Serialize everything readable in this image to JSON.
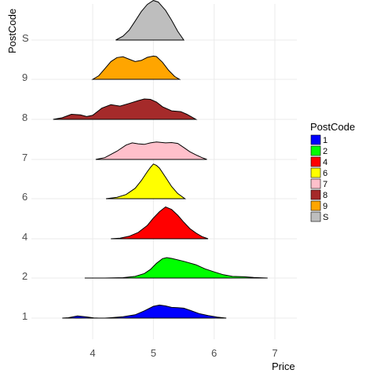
{
  "chart_data": {
    "type": "area",
    "subtype": "ridgeline-density",
    "title": "",
    "xlabel": "Price",
    "ylabel": "PostCode",
    "xlim": [
      3.0,
      7.35
    ],
    "x_ticks": [
      4,
      5,
      6,
      7
    ],
    "grid": true,
    "legend": {
      "title": "PostCode",
      "position": "right"
    },
    "categories": [
      "1",
      "2",
      "4",
      "6",
      "7",
      "8",
      "9",
      "S"
    ],
    "series": [
      {
        "name": "1",
        "color": "#0000ff",
        "scale": 0.32,
        "points": [
          [
            3.5,
            0
          ],
          [
            3.6,
            0.03
          ],
          [
            3.75,
            0.16
          ],
          [
            3.9,
            0.09
          ],
          [
            4.02,
            0.01
          ],
          [
            4.1,
            0
          ],
          [
            4.2,
            0
          ],
          [
            4.3,
            0.03
          ],
          [
            4.5,
            0.1
          ],
          [
            4.7,
            0.25
          ],
          [
            4.85,
            0.55
          ],
          [
            5.0,
            0.9
          ],
          [
            5.1,
            1.0
          ],
          [
            5.2,
            0.93
          ],
          [
            5.3,
            0.82
          ],
          [
            5.4,
            0.8
          ],
          [
            5.5,
            0.76
          ],
          [
            5.6,
            0.6
          ],
          [
            5.75,
            0.35
          ],
          [
            5.9,
            0.2
          ],
          [
            6.05,
            0.08
          ],
          [
            6.2,
            0
          ]
        ]
      },
      {
        "name": "2",
        "color": "#00ff00",
        "scale": 0.5,
        "points": [
          [
            3.87,
            0
          ],
          [
            4.2,
            0
          ],
          [
            4.5,
            0.02
          ],
          [
            4.7,
            0.08
          ],
          [
            4.85,
            0.22
          ],
          [
            4.95,
            0.42
          ],
          [
            5.05,
            0.72
          ],
          [
            5.15,
            0.95
          ],
          [
            5.22,
            1.0
          ],
          [
            5.3,
            0.96
          ],
          [
            5.5,
            0.82
          ],
          [
            5.7,
            0.65
          ],
          [
            5.85,
            0.45
          ],
          [
            6.0,
            0.3
          ],
          [
            6.15,
            0.16
          ],
          [
            6.3,
            0.08
          ],
          [
            6.5,
            0.06
          ],
          [
            6.65,
            0.03
          ],
          [
            6.8,
            0.01
          ],
          [
            6.88,
            0
          ]
        ]
      },
      {
        "name": "4",
        "color": "#ff0000",
        "scale": 0.78,
        "points": [
          [
            4.3,
            0
          ],
          [
            4.45,
            0.02
          ],
          [
            4.6,
            0.08
          ],
          [
            4.75,
            0.2
          ],
          [
            4.9,
            0.42
          ],
          [
            5.0,
            0.65
          ],
          [
            5.1,
            0.85
          ],
          [
            5.2,
            1.0
          ],
          [
            5.3,
            0.92
          ],
          [
            5.4,
            0.74
          ],
          [
            5.5,
            0.52
          ],
          [
            5.6,
            0.32
          ],
          [
            5.7,
            0.18
          ],
          [
            5.8,
            0.07
          ],
          [
            5.9,
            0
          ]
        ]
      },
      {
        "name": "6",
        "color": "#ffff00",
        "scale": 0.85,
        "points": [
          [
            4.22,
            0
          ],
          [
            4.4,
            0.04
          ],
          [
            4.55,
            0.12
          ],
          [
            4.7,
            0.3
          ],
          [
            4.8,
            0.52
          ],
          [
            4.9,
            0.78
          ],
          [
            4.95,
            0.9
          ],
          [
            5.0,
            1.0
          ],
          [
            5.05,
            0.96
          ],
          [
            5.1,
            0.88
          ],
          [
            5.2,
            0.62
          ],
          [
            5.3,
            0.35
          ],
          [
            5.4,
            0.15
          ],
          [
            5.52,
            0
          ]
        ]
      },
      {
        "name": "7",
        "color": "#ffc0cb",
        "scale": 0.45,
        "points": [
          [
            4.05,
            0
          ],
          [
            4.2,
            0.1
          ],
          [
            4.4,
            0.45
          ],
          [
            4.55,
            0.78
          ],
          [
            4.65,
            0.9
          ],
          [
            4.75,
            0.85
          ],
          [
            4.85,
            0.82
          ],
          [
            4.95,
            0.9
          ],
          [
            5.05,
            0.95
          ],
          [
            5.2,
            0.9
          ],
          [
            5.3,
            0.92
          ],
          [
            5.4,
            0.87
          ],
          [
            5.5,
            0.65
          ],
          [
            5.6,
            0.42
          ],
          [
            5.7,
            0.25
          ],
          [
            5.8,
            0.1
          ],
          [
            5.88,
            0
          ]
        ]
      },
      {
        "name": "8",
        "color": "#a52a2a",
        "scale": 0.5,
        "points": [
          [
            3.35,
            0
          ],
          [
            3.5,
            0.08
          ],
          [
            3.65,
            0.25
          ],
          [
            3.8,
            0.22
          ],
          [
            3.9,
            0.14
          ],
          [
            4.0,
            0.2
          ],
          [
            4.15,
            0.55
          ],
          [
            4.3,
            0.72
          ],
          [
            4.45,
            0.65
          ],
          [
            4.6,
            0.78
          ],
          [
            4.75,
            0.92
          ],
          [
            4.85,
            1.0
          ],
          [
            4.95,
            0.98
          ],
          [
            5.05,
            0.85
          ],
          [
            5.15,
            0.62
          ],
          [
            5.3,
            0.42
          ],
          [
            5.45,
            0.38
          ],
          [
            5.55,
            0.25
          ],
          [
            5.7,
            0
          ]
        ]
      },
      {
        "name": "9",
        "color": "#ffa500",
        "scale": 0.58,
        "points": [
          [
            4.0,
            0
          ],
          [
            4.1,
            0.15
          ],
          [
            4.2,
            0.45
          ],
          [
            4.3,
            0.75
          ],
          [
            4.4,
            0.92
          ],
          [
            4.5,
            0.95
          ],
          [
            4.6,
            0.85
          ],
          [
            4.7,
            0.75
          ],
          [
            4.8,
            0.8
          ],
          [
            4.9,
            0.93
          ],
          [
            5.0,
            0.98
          ],
          [
            5.05,
            0.96
          ],
          [
            5.15,
            0.72
          ],
          [
            5.25,
            0.38
          ],
          [
            5.35,
            0.12
          ],
          [
            5.43,
            0
          ]
        ]
      },
      {
        "name": "S",
        "color": "#bebebe",
        "scale": 0.97,
        "points": [
          [
            4.38,
            0
          ],
          [
            4.5,
            0.1
          ],
          [
            4.6,
            0.25
          ],
          [
            4.7,
            0.48
          ],
          [
            4.8,
            0.72
          ],
          [
            4.9,
            0.9
          ],
          [
            5.0,
            1.0
          ],
          [
            5.08,
            0.96
          ],
          [
            5.2,
            0.75
          ],
          [
            5.3,
            0.5
          ],
          [
            5.4,
            0.22
          ],
          [
            5.5,
            0
          ]
        ]
      }
    ]
  }
}
